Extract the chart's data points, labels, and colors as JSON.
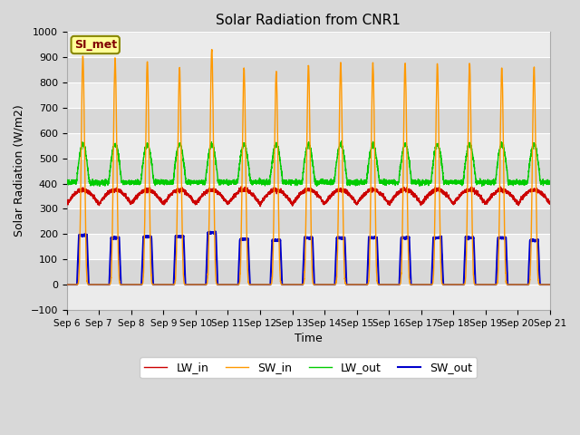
{
  "title": "Solar Radiation from CNR1",
  "xlabel": "Time",
  "ylabel": "Solar Radiation (W/m2)",
  "ylim": [
    -100,
    1000
  ],
  "yticks": [
    -100,
    0,
    100,
    200,
    300,
    400,
    500,
    600,
    700,
    800,
    900,
    1000
  ],
  "annotation": "SI_met",
  "colors": {
    "LW_in": "#cc0000",
    "SW_in": "#ff9900",
    "LW_out": "#00cc00",
    "SW_out": "#0000cc"
  },
  "background_color": "#d8d8d8",
  "plot_bg": "#d8d8d8",
  "n_days": 15,
  "start_day": 6,
  "sw_in_peaks": [
    905,
    895,
    885,
    860,
    930,
    855,
    845,
    870,
    875,
    875,
    875,
    875,
    875,
    860,
    860
  ],
  "sw_out_peaks": [
    195,
    185,
    190,
    190,
    205,
    180,
    175,
    185,
    185,
    185,
    185,
    185,
    185,
    185,
    175
  ],
  "lw_in_base": 320,
  "lw_in_amp": 55,
  "lw_out_base": 405,
  "lw_out_amp": 150,
  "figsize": [
    6.4,
    4.8
  ],
  "dpi": 100
}
